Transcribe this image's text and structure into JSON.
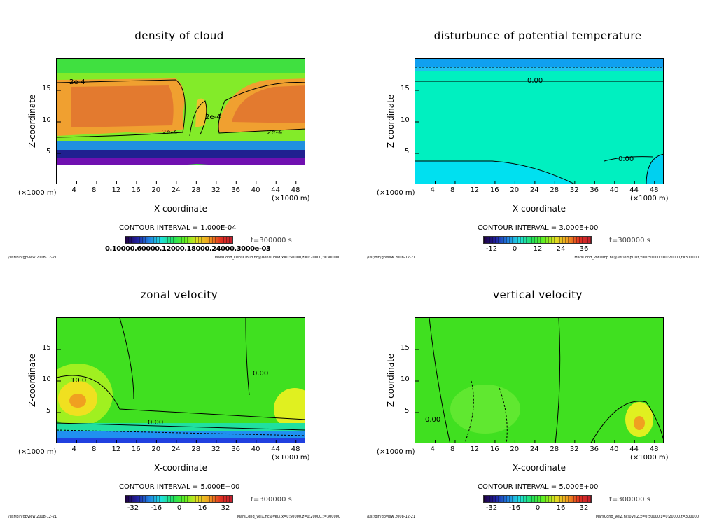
{
  "chart_data": [
    {
      "type": "heatmap",
      "title": "density of cloud",
      "xlabel": "X-coordinate",
      "ylabel": "Z-coordinate",
      "x_unit": "(×1000 m)",
      "xlim": [
        0,
        50
      ],
      "ylim": [
        0,
        20
      ],
      "xticks": [
        "4",
        "8",
        "12",
        "16",
        "20",
        "24",
        "28",
        "32",
        "36",
        "40",
        "44",
        "48"
      ],
      "yticks": [
        "5",
        "10",
        "15"
      ],
      "contour_labels": [
        "2e-4",
        "2e-4",
        "2e-4",
        "2e-4"
      ],
      "contour_interval": "CONTOUR INTERVAL = 1.000E-04",
      "colorbar_ticks_text": "0.10000.60000.12000.18000.24000.3000e-03",
      "time": "t=300000 s",
      "footer_left": "/usr/bin/gpview  2008-12-21",
      "footer_right": "MarsCond_DensCloud.nc@DensCloud,x=0:50000,z=0:20000,t=300000"
    },
    {
      "type": "heatmap",
      "title": "disturbunce of potential temperature",
      "xlabel": "X-coordinate",
      "ylabel": "Z-coordinate",
      "x_unit": "(×1000 m)",
      "xlim": [
        0,
        50
      ],
      "ylim": [
        0,
        20
      ],
      "xticks": [
        "4",
        "8",
        "12",
        "16",
        "20",
        "24",
        "28",
        "32",
        "36",
        "40",
        "44",
        "48"
      ],
      "yticks": [
        "5",
        "10",
        "15"
      ],
      "contour_labels": [
        "0.00",
        "0.00"
      ],
      "contour_interval": "CONTOUR INTERVAL = 3.000E+00",
      "colorbar_ticks": [
        "-12",
        "0",
        "12",
        "24",
        "36"
      ],
      "time": "t=300000 s",
      "footer_left": "/usr/bin/gpview  2008-12-21",
      "footer_right": "MarsCond_PotTemp.nc@PotTempDist,x=0:50000,z=0:20000,t=300000"
    },
    {
      "type": "heatmap",
      "title": "zonal velocity",
      "xlabel": "X-coordinate",
      "ylabel": "Z-coordinate",
      "x_unit": "(×1000 m)",
      "xlim": [
        0,
        50
      ],
      "ylim": [
        0,
        20
      ],
      "xticks": [
        "4",
        "8",
        "12",
        "16",
        "20",
        "24",
        "28",
        "32",
        "36",
        "40",
        "44",
        "48"
      ],
      "yticks": [
        "5",
        "10",
        "15"
      ],
      "contour_labels": [
        "10.0",
        "0.00",
        "0.00"
      ],
      "contour_interval": "CONTOUR INTERVAL = 5.000E+00",
      "colorbar_ticks": [
        "-32",
        "-16",
        "0",
        "16",
        "32"
      ],
      "time": "t=300000 s",
      "footer_left": "/usr/bin/gpview  2008-12-21",
      "footer_right": "MarsCond_VelX.nc@VelX,x=0:50000,z=0:20000,t=300000"
    },
    {
      "type": "heatmap",
      "title": "vertical velocity",
      "xlabel": "X-coordinate",
      "ylabel": "Z-coordinate",
      "x_unit": "(×1000 m)",
      "xlim": [
        0,
        50
      ],
      "ylim": [
        0,
        20
      ],
      "xticks": [
        "4",
        "8",
        "12",
        "16",
        "20",
        "24",
        "28",
        "32",
        "36",
        "40",
        "44",
        "48"
      ],
      "yticks": [
        "5",
        "10",
        "15"
      ],
      "contour_labels": [
        "0.00"
      ],
      "contour_interval": "CONTOUR INTERVAL = 5.000E+00",
      "colorbar_ticks": [
        "-32",
        "-16",
        "0",
        "16",
        "32"
      ],
      "time": "t=300000 s",
      "footer_left": "/usr/bin/gpview  2008-12-21",
      "footer_right": "MarsCond_VelZ.nc@VelZ,x=0:50000,z=0:20000,t=300000"
    }
  ]
}
